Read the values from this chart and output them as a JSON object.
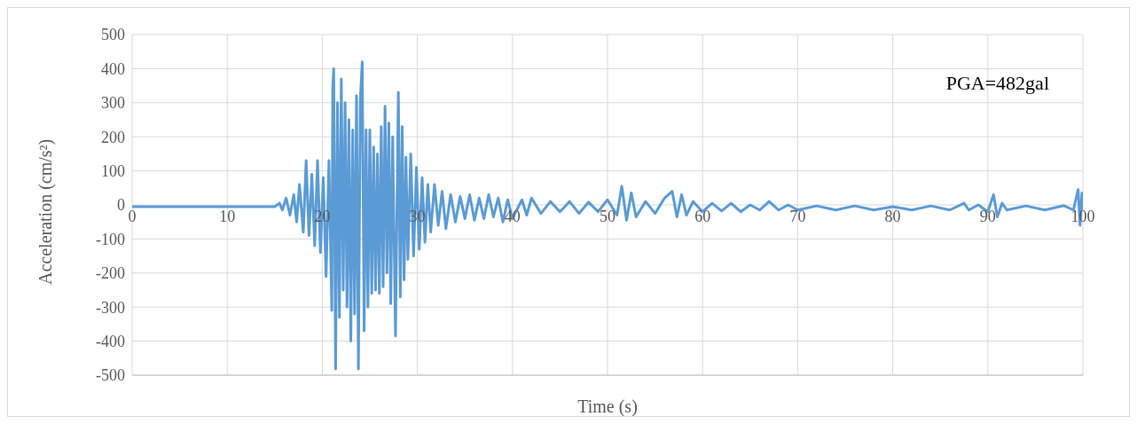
{
  "chart_data": {
    "type": "line",
    "xlabel": "Time (s)",
    "ylabel": "Acceleration (cm/s²)",
    "annotations": [
      "PGA=482gal"
    ],
    "xlim": [
      0,
      100
    ],
    "xticks": [
      0,
      10,
      20,
      30,
      40,
      50,
      60,
      70,
      80,
      90,
      100
    ],
    "ylim": [
      -500,
      500
    ],
    "yticks": [
      -500,
      -400,
      -300,
      -200,
      -100,
      0,
      100,
      200,
      300,
      400,
      500
    ],
    "grid": true,
    "marker": "none",
    "x": [
      0,
      15,
      15.5,
      15.8,
      16.2,
      16.6,
      17,
      17.3,
      17.6,
      18,
      18.3,
      18.6,
      18.9,
      19.2,
      19.5,
      19.8,
      20.1,
      20.4,
      20.7,
      21,
      21.1,
      21.2,
      21.4,
      21.6,
      21.8,
      22,
      22.2,
      22.4,
      22.6,
      22.8,
      23,
      23.2,
      23.4,
      23.6,
      23.8,
      24,
      24.2,
      24.4,
      24.6,
      24.8,
      25,
      25.2,
      25.4,
      25.6,
      25.8,
      26,
      26.2,
      26.4,
      26.6,
      26.8,
      27,
      27.2,
      27.4,
      27.7,
      28,
      28.2,
      28.4,
      28.6,
      28.8,
      29,
      29.3,
      29.6,
      29.9,
      30.2,
      30.5,
      30.8,
      31.1,
      31.4,
      31.8,
      32.2,
      32.6,
      33,
      33.5,
      34,
      34.5,
      35,
      35.5,
      36,
      36.5,
      37,
      37.5,
      38,
      38.5,
      39,
      39.5,
      40,
      41,
      41.5,
      42,
      43,
      44,
      45,
      46,
      47,
      48,
      49,
      50,
      51,
      51.5,
      52,
      52.5,
      53,
      54,
      55,
      56,
      56.8,
      57.3,
      57.8,
      58.3,
      59,
      60,
      61,
      62,
      63,
      64,
      65,
      66,
      67,
      68,
      69,
      70,
      72,
      74,
      76,
      78,
      80,
      82,
      84,
      86,
      87.5,
      88,
      89,
      90,
      90.6,
      91,
      91.5,
      92,
      94,
      96,
      98,
      99,
      99.5,
      99.7,
      99.9,
      100
    ],
    "series": [
      {
        "color": "#5b9bd5",
        "values": [
          -5,
          -5,
          5,
          -15,
          20,
          -30,
          30,
          -50,
          60,
          -80,
          130,
          -90,
          90,
          -120,
          130,
          -140,
          80,
          -210,
          130,
          -310,
          345,
          400,
          -482,
          300,
          -330,
          370,
          -250,
          300,
          -300,
          250,
          -400,
          220,
          -320,
          320,
          -482,
          310,
          420,
          -370,
          220,
          -300,
          220,
          -260,
          170,
          -250,
          150,
          -260,
          230,
          -240,
          290,
          -200,
          240,
          -290,
          200,
          -385,
          330,
          -270,
          230,
          -220,
          140,
          -160,
          150,
          -150,
          110,
          -130,
          80,
          -110,
          60,
          -80,
          60,
          -60,
          40,
          -70,
          30,
          -50,
          25,
          -40,
          30,
          -45,
          20,
          -40,
          30,
          -35,
          20,
          -50,
          15,
          -40,
          15,
          -30,
          20,
          -25,
          10,
          -20,
          10,
          -25,
          8,
          -20,
          15,
          -30,
          55,
          -45,
          35,
          -35,
          10,
          -25,
          20,
          40,
          -35,
          30,
          -30,
          10,
          -20,
          5,
          -18,
          5,
          -20,
          0,
          -15,
          10,
          -15,
          0,
          -15,
          -3,
          -15,
          -3,
          -15,
          -5,
          -15,
          -3,
          -15,
          5,
          -15,
          0,
          -20,
          30,
          -35,
          5,
          -15,
          -3,
          -15,
          -2,
          -15,
          45,
          -60,
          35,
          -15
        ]
      }
    ]
  }
}
